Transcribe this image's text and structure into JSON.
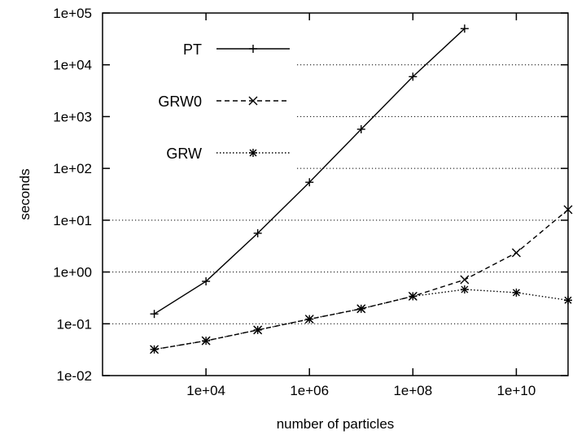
{
  "chart_data": {
    "type": "line",
    "xlabel": "number of particles",
    "ylabel": "seconds",
    "x_scale": "log",
    "y_scale": "log",
    "xlim": [
      100,
      100000000000.0
    ],
    "ylim": [
      0.01,
      100000
    ],
    "x_ticks": [
      {
        "value": 10000,
        "label": "1e+04"
      },
      {
        "value": 1000000,
        "label": "1e+06"
      },
      {
        "value": 100000000,
        "label": "1e+08"
      },
      {
        "value": 10000000000,
        "label": "1e+10"
      }
    ],
    "y_ticks": [
      {
        "value": 0.01,
        "label": "1e-02"
      },
      {
        "value": 0.1,
        "label": "1e-01"
      },
      {
        "value": 1,
        "label": "1e+00"
      },
      {
        "value": 10,
        "label": "1e+01"
      },
      {
        "value": 100,
        "label": "1e+02"
      },
      {
        "value": 1000,
        "label": "1e+03"
      },
      {
        "value": 10000,
        "label": "1e+04"
      },
      {
        "value": 100000,
        "label": "1e+05"
      }
    ],
    "grid": "horizontal dotted lines at y ticks",
    "legend_position": "top-left",
    "series": [
      {
        "name": "PT",
        "line_style": "solid",
        "marker": "plus",
        "x": [
          1000,
          10000,
          100000,
          1000000,
          10000000,
          100000000,
          1000000000
        ],
        "y": [
          0.155,
          0.66,
          5.6,
          54,
          570,
          5900,
          50000
        ]
      },
      {
        "name": "GRW0",
        "line_style": "dashed",
        "marker": "cross",
        "x": [
          1000,
          10000,
          100000,
          1000000,
          10000000,
          100000000,
          1000000000,
          10000000000,
          100000000000
        ],
        "y": [
          0.032,
          0.047,
          0.076,
          0.123,
          0.195,
          0.34,
          0.71,
          2.35,
          16
        ]
      },
      {
        "name": "GRW",
        "line_style": "dotted",
        "marker": "star",
        "x": [
          1000,
          10000,
          100000,
          1000000,
          10000000,
          100000000,
          1000000000,
          10000000000,
          100000000000
        ],
        "y": [
          0.032,
          0.047,
          0.076,
          0.123,
          0.195,
          0.34,
          0.46,
          0.4,
          0.285
        ]
      }
    ]
  }
}
